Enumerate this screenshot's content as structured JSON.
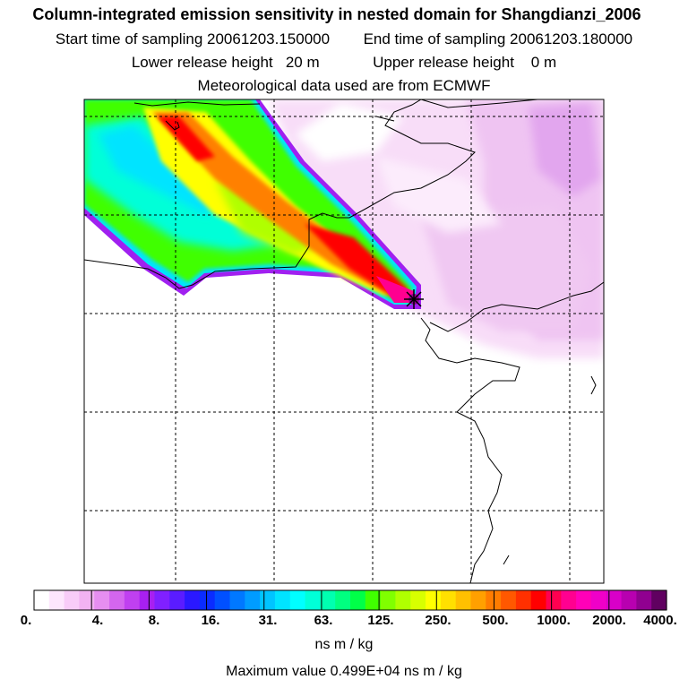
{
  "title": "Column-integrated emission sensitivity in nested domain for Shangdianzi_2006",
  "sampling": {
    "start": "Start time of sampling 20061203.150000",
    "end": "End time of sampling 20061203.180000"
  },
  "release": {
    "lower": "Lower release height   20 m",
    "upper": "Upper release height    0 m"
  },
  "meteo": "Meteorological data used are from ECMWF",
  "colorbar": {
    "labels": [
      "0.",
      "4.",
      "8.",
      "16.",
      "31.",
      "63.",
      "125.",
      "250.",
      "500.",
      "1000.",
      "2000.",
      "4000."
    ],
    "colors": [
      "#ffffff",
      "#fde6fd",
      "#f8ccf8",
      "#f2b2f2",
      "#e68ef0",
      "#d466ee",
      "#c040f0",
      "#a820f0",
      "#8020ff",
      "#5a1cff",
      "#2a18ff",
      "#0a2cff",
      "#0050ff",
      "#0078ff",
      "#009cff",
      "#00c4ff",
      "#00e4ff",
      "#00ffff",
      "#00ffd8",
      "#00ffb0",
      "#00ff80",
      "#00ff48",
      "#40ff00",
      "#80ff00",
      "#b0ff00",
      "#d8ff00",
      "#ffff00",
      "#ffe000",
      "#ffc000",
      "#ffa000",
      "#ff7c00",
      "#ff5800",
      "#ff3000",
      "#ff0000",
      "#ff0050",
      "#ff0090",
      "#ff00b8",
      "#f000c8",
      "#d800c8",
      "#b800b0",
      "#900090",
      "#600060"
    ],
    "units": "ns m / kg"
  },
  "max_value": "Maximum value  0.499E+04 ns m / kg",
  "receptor_marker": "star"
}
